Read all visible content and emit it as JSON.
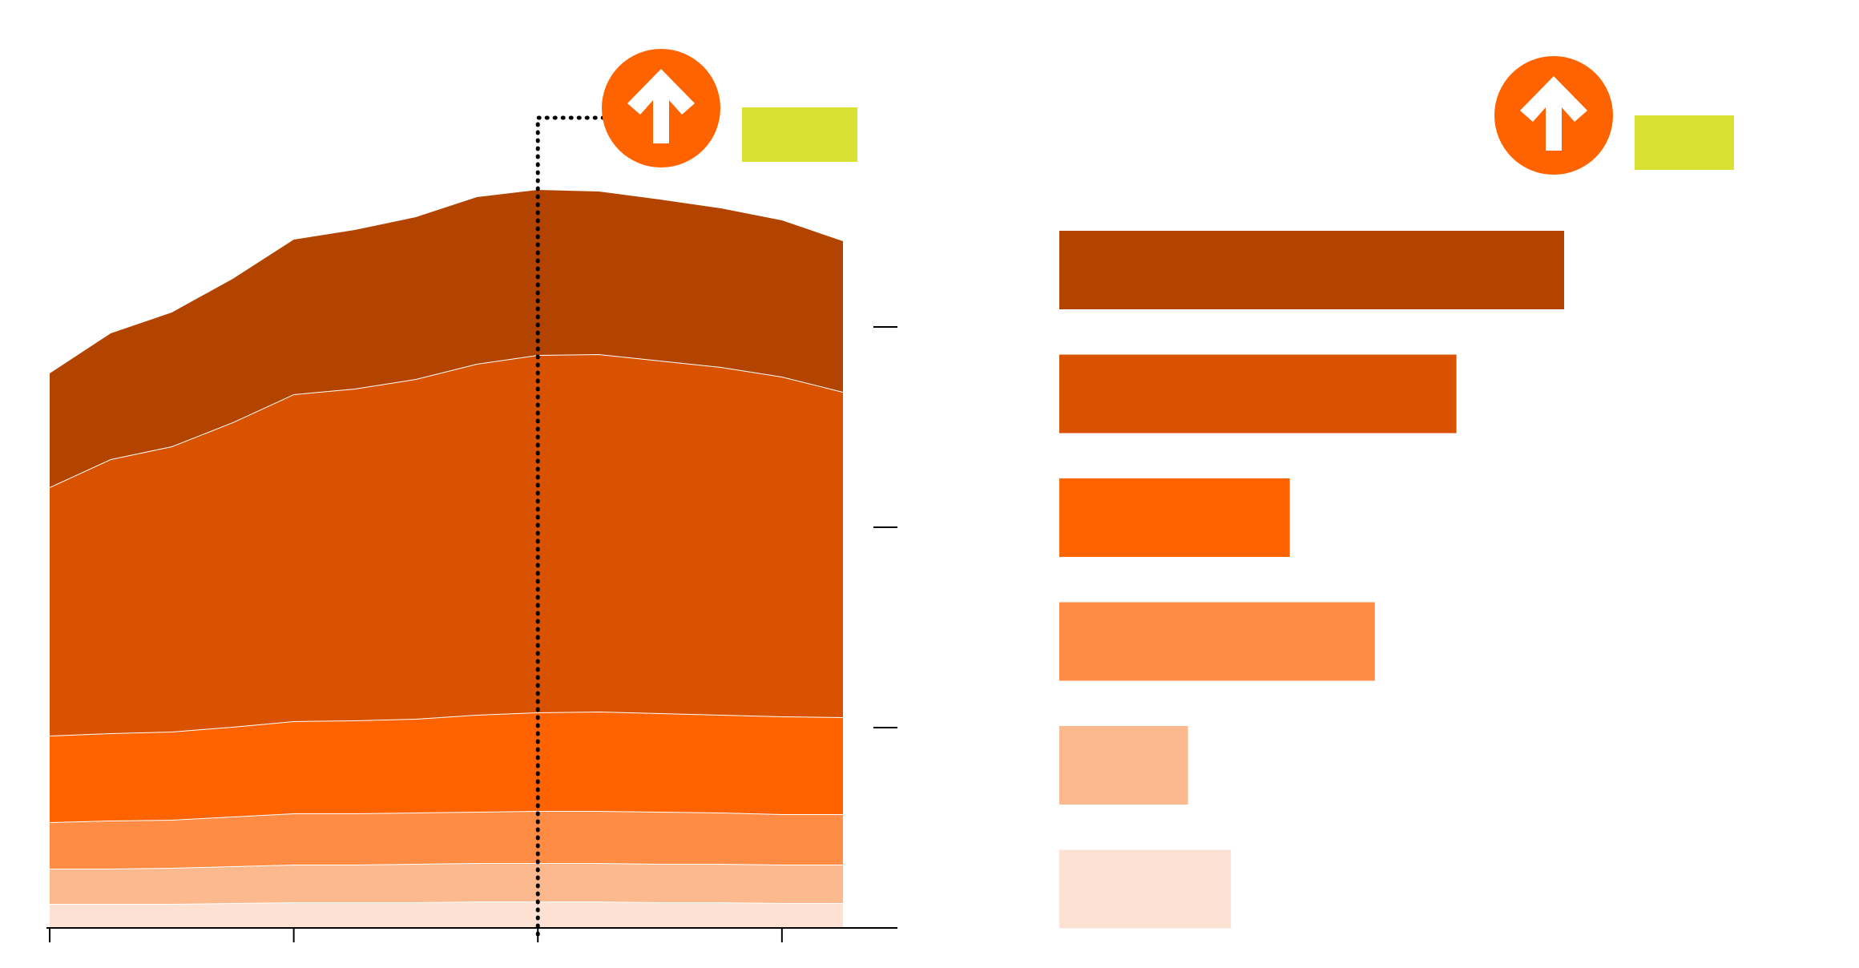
{
  "colors": {
    "layers": [
      "#fde2d4",
      "#fdb98e",
      "#ff8c45",
      "#ff6300",
      "#d95200",
      "#b24400"
    ],
    "badge": "#ff6300",
    "badge_icon": "#ffffff",
    "highlight_box": "#d9e233",
    "axis": "#000000",
    "separator": "#ffffff"
  },
  "icons": {
    "area_badge": "up-arrow-icon",
    "bar_badge": "up-arrow-icon"
  },
  "chart_data": [
    {
      "type": "area",
      "stacked": true,
      "x": [
        0,
        1,
        2,
        3,
        4,
        5,
        6,
        7,
        8,
        9,
        10,
        11,
        12,
        13
      ],
      "series": [
        {
          "values": [
            30,
            30,
            30,
            31,
            32,
            32,
            32,
            33,
            33,
            33,
            32,
            32,
            31,
            31
          ]
        },
        {
          "values": [
            44,
            44,
            45,
            46,
            47,
            47,
            48,
            48,
            48,
            48,
            48,
            48,
            48,
            48
          ]
        },
        {
          "values": [
            58,
            60,
            60,
            62,
            64,
            64,
            64,
            64,
            65,
            65,
            65,
            64,
            63,
            63
          ]
        },
        {
          "values": [
            108,
            109,
            110,
            112,
            115,
            116,
            117,
            121,
            123,
            124,
            123,
            122,
            122,
            121
          ]
        },
        {
          "values": [
            310,
            342,
            356,
            380,
            408,
            414,
            424,
            438,
            446,
            446,
            440,
            434,
            424,
            406
          ]
        },
        {
          "values": [
            142,
            157,
            167,
            179,
            193,
            198,
            202,
            208,
            206,
            203,
            201,
            198,
            195,
            188
          ]
        }
      ],
      "ylim": [
        0,
        1000
      ],
      "yticks": [
        250,
        500,
        750
      ],
      "xticks": [
        0,
        4,
        8,
        12
      ],
      "highlight_index": 8,
      "grid": false,
      "legend": "none"
    },
    {
      "type": "bar",
      "orientation": "horizontal",
      "series": [
        {
          "values": [
            6.0,
            4.72,
            2.74,
            3.75,
            1.53,
            2.04
          ]
        }
      ],
      "xlim": [
        0,
        10
      ],
      "grid": false,
      "legend": "none"
    }
  ]
}
